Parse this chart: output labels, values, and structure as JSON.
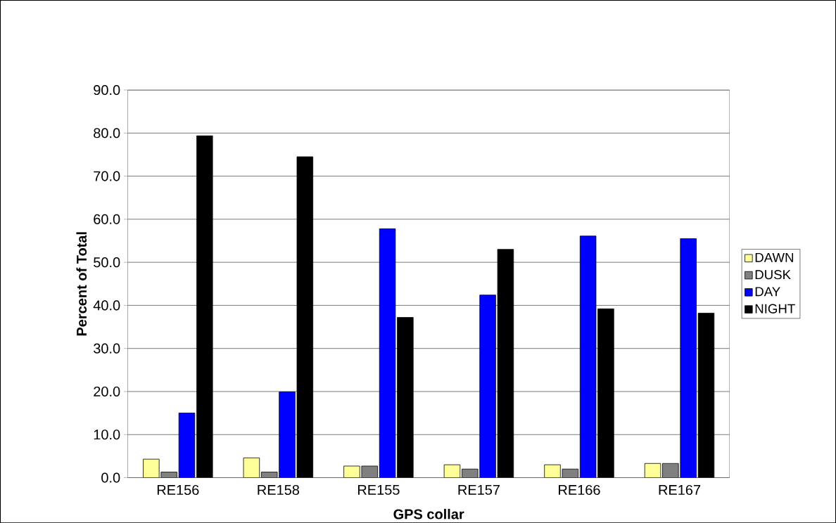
{
  "chart_data": {
    "type": "bar",
    "xlabel": "GPS collar",
    "ylabel": "Percent of Total",
    "categories": [
      "RE156",
      "RE158",
      "RE155",
      "RE157",
      "RE166",
      "RE167"
    ],
    "series": [
      {
        "name": "DAWN",
        "color": "#ffff99",
        "values": [
          4.3,
          4.6,
          2.7,
          3.0,
          3.0,
          3.3
        ]
      },
      {
        "name": "DUSK",
        "color": "#808080",
        "values": [
          1.3,
          1.3,
          2.7,
          2.0,
          2.0,
          3.3
        ]
      },
      {
        "name": "DAY",
        "color": "#0000ff",
        "values": [
          15.0,
          19.9,
          57.8,
          42.4,
          56.1,
          55.5
        ]
      },
      {
        "name": "NIGHT",
        "color": "#000000",
        "values": [
          79.4,
          74.5,
          37.2,
          53.0,
          39.2,
          38.2
        ]
      }
    ],
    "ylim": [
      0,
      90
    ],
    "yticks": [
      {
        "value": 0,
        "label": "0.0"
      },
      {
        "value": 10,
        "label": "10.0"
      },
      {
        "value": 20,
        "label": "20.0"
      },
      {
        "value": 30,
        "label": "30.0"
      },
      {
        "value": 40,
        "label": "40.0"
      },
      {
        "value": 50,
        "label": "50.0"
      },
      {
        "value": 60,
        "label": "60.0"
      },
      {
        "value": 70,
        "label": "70.0"
      },
      {
        "value": 80,
        "label": "80.0"
      },
      {
        "value": 90,
        "label": "90.0"
      }
    ],
    "grid": "y",
    "legend": "right"
  }
}
